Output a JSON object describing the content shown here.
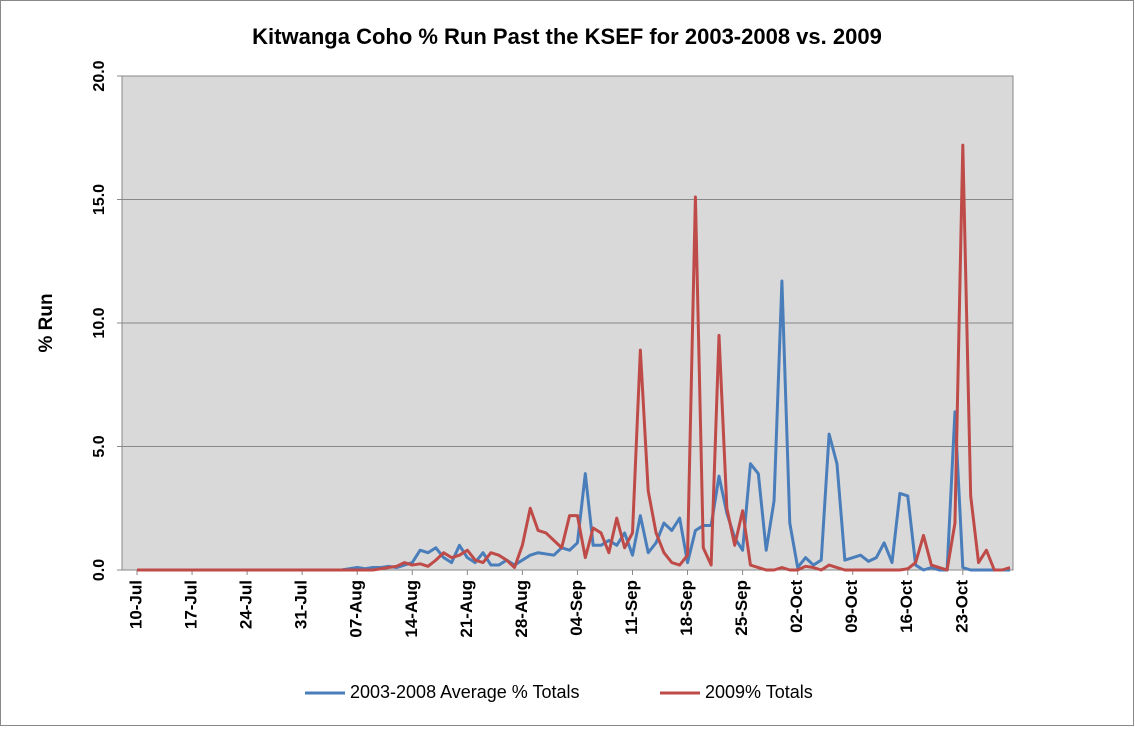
{
  "chart_data": {
    "type": "line",
    "title": "Kitwanga Coho % Run Past the KSEF for 2003-2008 vs. 2009",
    "y_label": "% Run",
    "categories": [
      "10-Jul",
      null,
      null,
      null,
      null,
      null,
      null,
      "17-Jul",
      null,
      null,
      null,
      null,
      null,
      null,
      "24-Jul",
      null,
      null,
      null,
      null,
      null,
      null,
      "31-Jul",
      null,
      null,
      null,
      null,
      null,
      null,
      "07-Aug",
      null,
      null,
      null,
      null,
      null,
      null,
      "14-Aug",
      null,
      null,
      null,
      null,
      null,
      null,
      "21-Aug",
      null,
      null,
      null,
      null,
      null,
      null,
      "28-Aug",
      null,
      null,
      null,
      null,
      null,
      null,
      "04-Sep",
      null,
      null,
      null,
      null,
      null,
      null,
      "11-Sep",
      null,
      null,
      null,
      null,
      null,
      null,
      "18-Sep",
      null,
      null,
      null,
      null,
      null,
      null,
      "25-Sep",
      null,
      null,
      null,
      null,
      null,
      null,
      "02-Oct",
      null,
      null,
      null,
      null,
      null,
      null,
      "09-Oct",
      null,
      null,
      null,
      null,
      null,
      null,
      "16-Oct",
      null,
      null,
      null,
      null,
      null,
      null,
      "23-Oct",
      null,
      null,
      null,
      null,
      null,
      null
    ],
    "series": [
      {
        "name": "2003-2008 Average % Totals",
        "color": "#4a7ebb",
        "values": [
          0,
          0,
          0,
          0,
          0,
          0,
          0,
          0,
          0,
          0,
          0,
          0,
          0,
          0,
          0,
          0,
          0,
          0,
          0,
          0,
          0,
          0,
          0,
          0,
          0,
          0,
          0,
          0.05,
          0.1,
          0.05,
          0.1,
          0.1,
          0.15,
          0.1,
          0.2,
          0.3,
          0.8,
          0.7,
          0.9,
          0.5,
          0.3,
          1.0,
          0.5,
          0.3,
          0.7,
          0.2,
          0.2,
          0.4,
          0.2,
          0.4,
          0.6,
          0.7,
          0.65,
          0.6,
          0.9,
          0.8,
          1.1,
          3.9,
          1.0,
          1.0,
          1.2,
          1.0,
          1.5,
          0.6,
          2.2,
          0.7,
          1.1,
          1.9,
          1.6,
          2.1,
          0.3,
          1.6,
          1.8,
          1.8,
          3.8,
          2.3,
          1.3,
          0.8,
          4.3,
          3.9,
          0.8,
          2.8,
          11.7,
          1.9,
          0.1,
          0.5,
          0.2,
          0.4,
          5.5,
          4.3,
          0.4,
          0.5,
          0.6,
          0.35,
          0.5,
          1.1,
          0.3,
          3.1,
          3.0,
          0.2,
          0,
          0.1,
          0,
          0,
          6.4,
          0.1,
          0,
          0,
          0,
          0,
          0,
          0
        ]
      },
      {
        "name": "2009% Totals",
        "color": "#be4b48",
        "values": [
          0,
          0,
          0,
          0,
          0,
          0,
          0,
          0,
          0,
          0,
          0,
          0,
          0,
          0,
          0,
          0,
          0,
          0,
          0,
          0,
          0,
          0,
          0,
          0,
          0,
          0,
          0,
          0,
          0,
          0,
          0,
          0.05,
          0.1,
          0.15,
          0.3,
          0.2,
          0.25,
          0.15,
          0.4,
          0.7,
          0.5,
          0.6,
          0.8,
          0.4,
          0.3,
          0.7,
          0.6,
          0.4,
          0.1,
          1.0,
          2.5,
          1.6,
          1.5,
          1.2,
          0.9,
          2.2,
          2.2,
          0.5,
          1.7,
          1.5,
          0.7,
          2.1,
          0.9,
          1.5,
          8.9,
          3.2,
          1.5,
          0.7,
          0.3,
          0.2,
          0.6,
          15.1,
          0.9,
          0.2,
          9.5,
          2.5,
          1.0,
          2.4,
          0.2,
          0.1,
          0,
          0,
          0.1,
          0,
          0,
          0.15,
          0.1,
          0,
          0.2,
          0.1,
          0,
          0,
          0,
          0,
          0,
          0,
          0,
          0,
          0.05,
          0.3,
          1.4,
          0.2,
          0.1,
          0,
          1.9,
          17.2,
          3.0,
          0.3,
          0.8,
          0,
          0,
          0.1
        ]
      }
    ],
    "ylim": [
      0,
      20
    ],
    "yticks": [
      {
        "value": 0,
        "label": "0.0"
      },
      {
        "value": 5,
        "label": "5.0"
      },
      {
        "value": 10,
        "label": "10.0"
      },
      {
        "value": 15,
        "label": "15.0"
      },
      {
        "value": 20,
        "label": "20.0"
      }
    ],
    "grid": true,
    "legend": "bottom"
  }
}
